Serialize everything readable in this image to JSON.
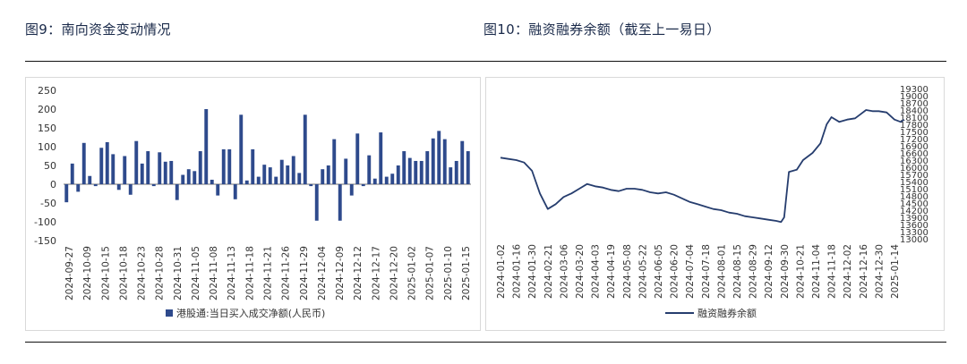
{
  "figures": {
    "left_title": "图9：南向资金变动情况",
    "right_title": "图10：融资融券余额（截至上一易日）"
  },
  "colors": {
    "bar": "#2e4a8c",
    "line": "#263d6e",
    "title": "#1a2a4a"
  },
  "chart_data": [
    {
      "type": "bar",
      "legend": "港股通:当日买入成交净额(人民币)",
      "ylim": [
        -150,
        250
      ],
      "yticks": [
        -150,
        -100,
        -50,
        0,
        50,
        100,
        150,
        200,
        250
      ],
      "xtick_labels": [
        "2024-09-27",
        "2024-10-09",
        "2024-10-15",
        "2024-10-18",
        "2024-10-23",
        "2024-10-28",
        "2024-10-31",
        "2024-11-05",
        "2024-11-08",
        "2024-11-13",
        "2024-11-18",
        "2024-11-21",
        "2024-11-26",
        "2024-11-29",
        "2024-12-04",
        "2024-12-09",
        "2024-12-12",
        "2024-12-17",
        "2024-12-20",
        "2025-01-02",
        "2025-01-07",
        "2025-01-10",
        "2025-01-15"
      ],
      "values": [
        -48,
        55,
        -20,
        110,
        22,
        -5,
        97,
        112,
        80,
        -15,
        75,
        -28,
        115,
        55,
        88,
        -5,
        85,
        60,
        62,
        -42,
        25,
        40,
        35,
        88,
        200,
        12,
        -30,
        93,
        93,
        -40,
        185,
        10,
        93,
        20,
        52,
        45,
        20,
        65,
        50,
        75,
        30,
        185,
        -5,
        -97,
        40,
        50,
        120,
        -97,
        68,
        -30,
        135,
        -5,
        77,
        15,
        138,
        20,
        28,
        50,
        88,
        70,
        62,
        62,
        88,
        122,
        142,
        120,
        45,
        62,
        115,
        88
      ]
    },
    {
      "type": "line",
      "legend": "融资融券余额",
      "ylim": [
        13000,
        19300
      ],
      "yticks": [
        13000,
        13300,
        13600,
        13900,
        14200,
        14500,
        14800,
        15100,
        15400,
        15700,
        16000,
        16300,
        16600,
        16900,
        17200,
        17500,
        17800,
        18100,
        18400,
        18700,
        19000,
        19300
      ],
      "xtick_labels": [
        "2024-01-02",
        "2024-01-16",
        "2024-01-30",
        "2024-02-21",
        "2024-03-06",
        "2024-03-20",
        "2024-04-03",
        "2024-04-19",
        "2024-05-08",
        "2024-05-22",
        "2024-06-05",
        "2024-06-20",
        "2024-07-04",
        "2024-07-18",
        "2024-08-01",
        "2024-08-15",
        "2024-08-29",
        "2024-09-12",
        "2024-09-30",
        "2024-10-21",
        "2024-11-04",
        "2024-11-18",
        "2024-12-02",
        "2024-12-16",
        "2024-12-30",
        "2025-01-14"
      ],
      "points": [
        [
          0,
          16400
        ],
        [
          0.5,
          16350
        ],
        [
          1,
          16300
        ],
        [
          1.5,
          16200
        ],
        [
          2,
          15850
        ],
        [
          2.5,
          14900
        ],
        [
          3,
          14250
        ],
        [
          3.5,
          14450
        ],
        [
          4,
          14750
        ],
        [
          4.5,
          14900
        ],
        [
          5,
          15100
        ],
        [
          5.5,
          15300
        ],
        [
          6,
          15200
        ],
        [
          6.5,
          15150
        ],
        [
          7,
          15050
        ],
        [
          7.5,
          15000
        ],
        [
          8,
          15100
        ],
        [
          8.5,
          15100
        ],
        [
          9,
          15050
        ],
        [
          9.5,
          14950
        ],
        [
          10,
          14900
        ],
        [
          10.5,
          14950
        ],
        [
          11,
          14850
        ],
        [
          11.5,
          14700
        ],
        [
          12,
          14550
        ],
        [
          12.5,
          14450
        ],
        [
          13,
          14350
        ],
        [
          13.5,
          14250
        ],
        [
          14,
          14200
        ],
        [
          14.5,
          14100
        ],
        [
          15,
          14050
        ],
        [
          15.5,
          13950
        ],
        [
          16,
          13900
        ],
        [
          16.5,
          13850
        ],
        [
          17,
          13800
        ],
        [
          17.5,
          13750
        ],
        [
          17.8,
          13700
        ],
        [
          18,
          13900
        ],
        [
          18.3,
          15800
        ],
        [
          18.8,
          15900
        ],
        [
          19.2,
          16300
        ],
        [
          19.8,
          16600
        ],
        [
          20.3,
          17000
        ],
        [
          20.7,
          17800
        ],
        [
          21,
          18100
        ],
        [
          21.5,
          17900
        ],
        [
          22,
          18000
        ],
        [
          22.5,
          18050
        ],
        [
          22.8,
          18200
        ],
        [
          23.2,
          18400
        ],
        [
          23.6,
          18350
        ],
        [
          24,
          18350
        ],
        [
          24.5,
          18300
        ],
        [
          25,
          18000
        ],
        [
          25.4,
          17900
        ],
        [
          25.6,
          18000
        ]
      ]
    }
  ]
}
